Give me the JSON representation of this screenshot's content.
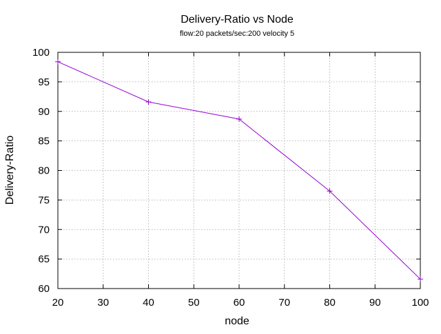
{
  "chart_data": {
    "type": "line",
    "title": "Delivery-Ratio vs Node",
    "subtitle": "flow:20  packets/sec:200 velocity 5",
    "xlabel": "node",
    "ylabel": "Delivery-Ratio",
    "xlim": [
      20,
      100
    ],
    "ylim": [
      60,
      100
    ],
    "xticks": [
      20,
      30,
      40,
      50,
      60,
      70,
      80,
      90,
      100
    ],
    "yticks": [
      60,
      65,
      70,
      75,
      80,
      85,
      90,
      95,
      100
    ],
    "grid": true,
    "series": [
      {
        "color": "#9400d3",
        "marker": "plus",
        "x": [
          20,
          40,
          60,
          80,
          100
        ],
        "y": [
          98.4,
          91.6,
          88.7,
          76.5,
          61.6
        ]
      }
    ]
  }
}
